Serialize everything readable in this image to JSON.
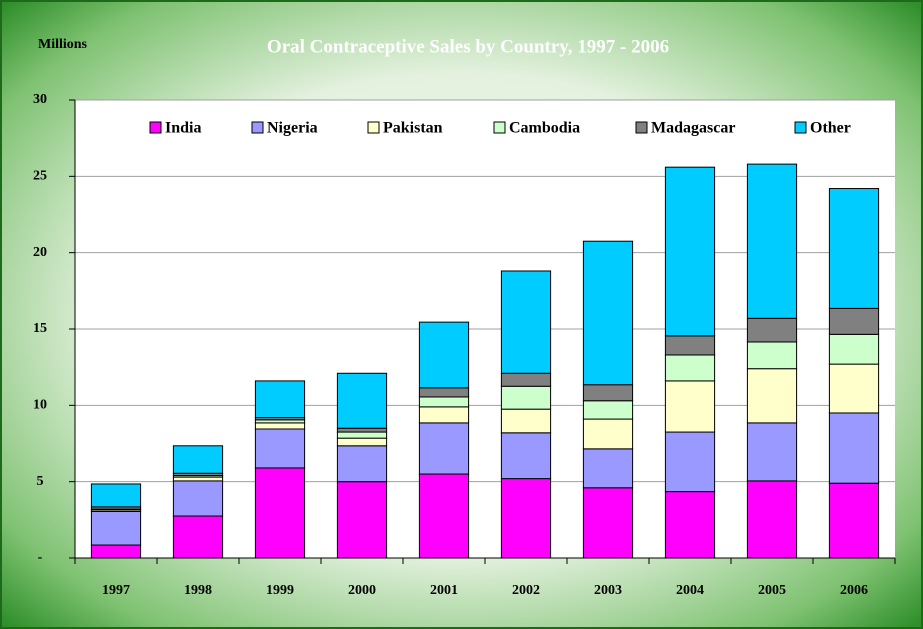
{
  "chart_data": {
    "type": "stacked_bar",
    "title": "Oral Contraceptive Sales by Country, 1997 - 2006",
    "y_label": "Millions",
    "categories": [
      "1997",
      "1998",
      "1999",
      "2000",
      "2001",
      "2002",
      "2003",
      "2004",
      "2005",
      "2006"
    ],
    "series": [
      {
        "name": "India",
        "color": "#ff00ff",
        "values": [
          0.85,
          2.75,
          5.9,
          5.0,
          5.5,
          5.2,
          4.6,
          4.35,
          5.05,
          4.9
        ]
      },
      {
        "name": "Nigeria",
        "color": "#9999ff",
        "values": [
          2.2,
          2.3,
          2.55,
          2.35,
          3.35,
          3.0,
          2.55,
          3.9,
          3.8,
          4.6
        ]
      },
      {
        "name": "Pakistan",
        "color": "#ffffcc",
        "values": [
          0.1,
          0.25,
          0.4,
          0.5,
          1.05,
          1.55,
          1.95,
          3.35,
          3.55,
          3.2
        ]
      },
      {
        "name": "Cambodia",
        "color": "#ccffcc",
        "values": [
          0.05,
          0.1,
          0.2,
          0.4,
          0.65,
          1.5,
          1.2,
          1.7,
          1.75,
          1.95
        ]
      },
      {
        "name": "Madagascar",
        "color": "#808080",
        "values": [
          0.15,
          0.15,
          0.15,
          0.25,
          0.6,
          0.85,
          1.05,
          1.25,
          1.55,
          1.7
        ]
      },
      {
        "name": "Other",
        "color": "#00ccff",
        "values": [
          1.5,
          1.8,
          2.4,
          3.6,
          4.3,
          6.7,
          9.4,
          11.05,
          10.1,
          7.85
        ]
      }
    ],
    "ylim": [
      0,
      30
    ],
    "yticks": [
      {
        "value": 0,
        "label": "-"
      },
      5,
      10,
      15,
      20,
      25,
      30
    ],
    "grid": true,
    "legend": "top"
  }
}
